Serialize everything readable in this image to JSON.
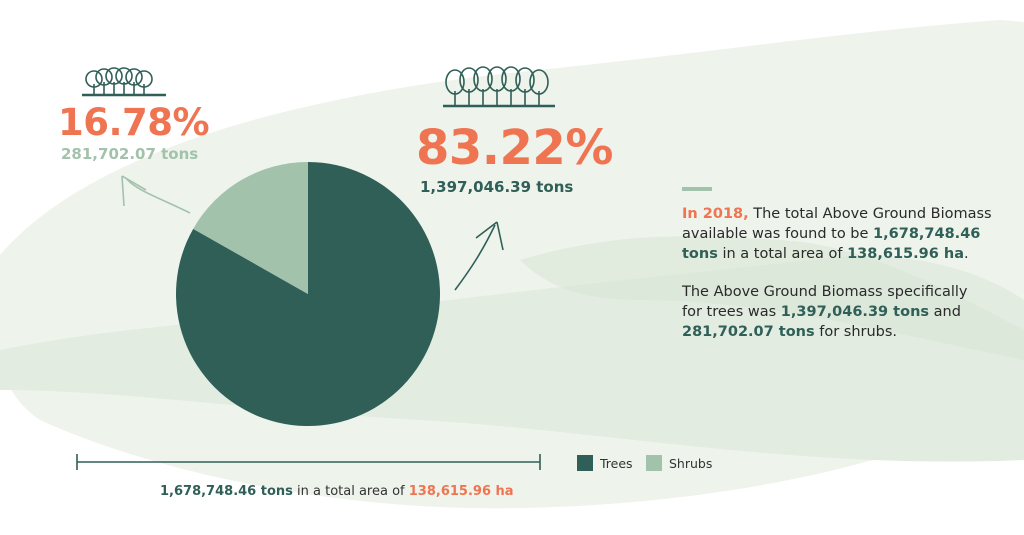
{
  "colors": {
    "trees": "#2f5f57",
    "shrubs": "#a2c2ac",
    "accent": "#ee7452",
    "wash": "#eaf1e8"
  },
  "icons": {
    "shrubs": "tree-cluster-icon",
    "trees": "forest-icon"
  },
  "callouts": {
    "shrubs": {
      "percent": "16.78%",
      "tons": "281,702.07 tons"
    },
    "trees": {
      "percent": "83.22%",
      "tons": "1,397,046.39 tons"
    }
  },
  "side_text": {
    "year": "In 2018,",
    "p1_a": " The total Above Ground Biomass available was found to be ",
    "p1_total": "1,678,748.46 tons",
    "p1_b": " in a total area of ",
    "p1_area": "138,615.96 ha",
    "p1_end": ".",
    "p2_a": "The Above Ground Biomass specifically for trees was ",
    "p2_trees": "1,397,046.39 tons",
    "p2_b": " and ",
    "p2_shrubs": "281,702.07 tons",
    "p2_c": " for shrubs."
  },
  "summary": {
    "total": "1,678,748.46 tons",
    "middle": " in a total area of ",
    "area": "138,615.96 ha"
  },
  "chart_data": {
    "type": "pie",
    "categories": [
      "Trees",
      "Shrubs"
    ],
    "values": [
      83.22,
      16.78
    ],
    "tons": [
      1397046.39,
      281702.07
    ],
    "colors": [
      "#2f5f57",
      "#a2c2ac"
    ],
    "legend": [
      "Trees",
      "Shrubs"
    ],
    "legend_position": "bottom-right"
  }
}
